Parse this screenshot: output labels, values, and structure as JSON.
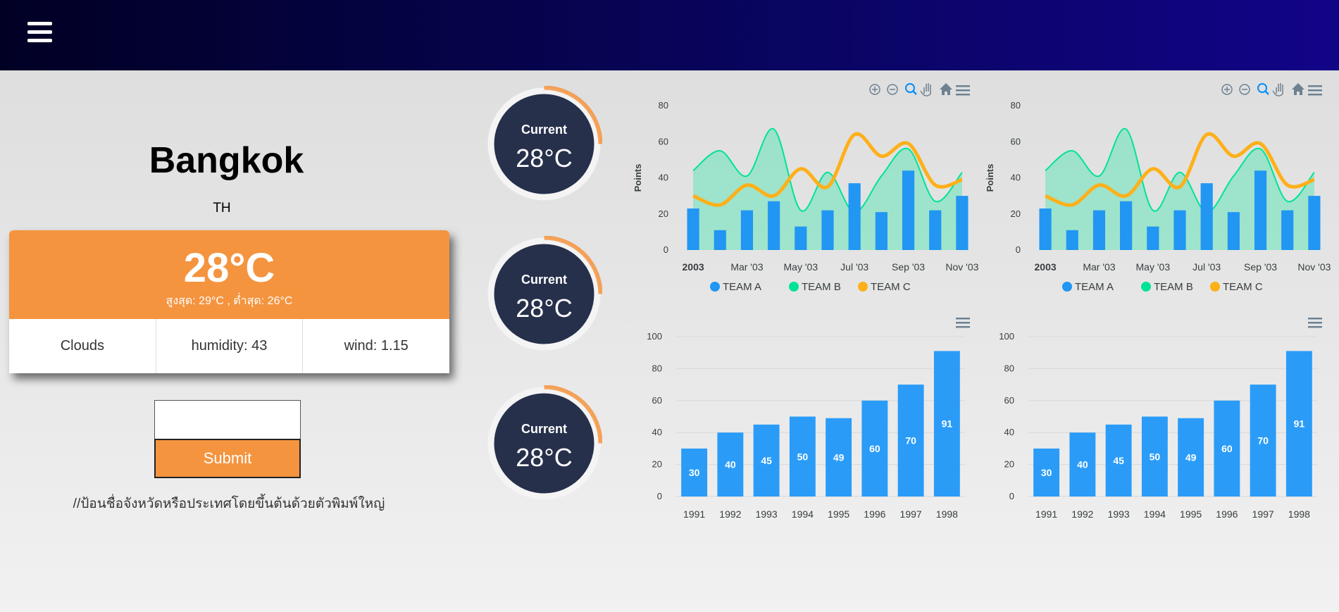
{
  "header": {
    "menu_icon": "hamburger-icon"
  },
  "weather": {
    "city": "Bangkok",
    "country": "TH",
    "temperature": "28°C",
    "minmax": "สูงสุด: 29°C , ต่ำสุด: 26°C",
    "condition": "Clouds",
    "humidity": "humidity: 43",
    "wind": "wind: 1.15",
    "accent": "#f4943f"
  },
  "search": {
    "input_value": "",
    "submit_label": "Submit",
    "hint": "//ป้อนชื่อจังหวัดหรือประเทศโดยขึ้นต้นด้วยตัวพิมพ์ใหญ่"
  },
  "gauges": [
    {
      "title": "Current",
      "value": "28°C"
    },
    {
      "title": "Current",
      "value": "28°C"
    },
    {
      "title": "Current",
      "value": "28°C"
    }
  ],
  "toolbar_icons": [
    "zoom-in-icon",
    "zoom-out-icon",
    "selection-zoom-icon",
    "pan-icon",
    "reset-home-icon",
    "menu-icon"
  ],
  "chart_data": [
    {
      "type": "line",
      "ylabel": "Points",
      "ylim": [
        0,
        80
      ],
      "yticks": [
        "0",
        "20",
        "40",
        "60",
        "80"
      ],
      "xtick_labels": [
        "2003",
        "Mar '03",
        "May '03",
        "Jul '03",
        "Sep '03",
        "Nov '03"
      ],
      "categories": [
        "2003-01",
        "2003-02",
        "2003-03",
        "2003-04",
        "2003-05",
        "2003-06",
        "2003-07",
        "2003-08",
        "2003-09",
        "2003-10",
        "2003-11"
      ],
      "series": [
        {
          "name": "TEAM A",
          "type": "bar",
          "color": "#2196f3",
          "values": [
            23,
            11,
            22,
            27,
            13,
            22,
            37,
            21,
            44,
            22,
            30
          ]
        },
        {
          "name": "TEAM B",
          "type": "area",
          "color": "#00e396",
          "values": [
            44,
            55,
            41,
            67,
            22,
            43,
            21,
            41,
            56,
            27,
            43
          ]
        },
        {
          "name": "TEAM C",
          "type": "line",
          "color": "#feb019",
          "values": [
            30,
            25,
            36,
            30,
            45,
            35,
            64,
            52,
            59,
            36,
            39
          ]
        }
      ],
      "legend": "bottom"
    },
    {
      "type": "line",
      "ylabel": "Points",
      "ylim": [
        0,
        80
      ],
      "yticks": [
        "0",
        "20",
        "40",
        "60",
        "80"
      ],
      "xtick_labels": [
        "2003",
        "Mar '03",
        "May '03",
        "Jul '03",
        "Sep '03",
        "Nov '03"
      ],
      "categories": [
        "2003-01",
        "2003-02",
        "2003-03",
        "2003-04",
        "2003-05",
        "2003-06",
        "2003-07",
        "2003-08",
        "2003-09",
        "2003-10",
        "2003-11"
      ],
      "series": [
        {
          "name": "TEAM A",
          "type": "bar",
          "color": "#2196f3",
          "values": [
            23,
            11,
            22,
            27,
            13,
            22,
            37,
            21,
            44,
            22,
            30
          ]
        },
        {
          "name": "TEAM B",
          "type": "area",
          "color": "#00e396",
          "values": [
            44,
            55,
            41,
            67,
            22,
            43,
            21,
            41,
            56,
            27,
            43
          ]
        },
        {
          "name": "TEAM C",
          "type": "line",
          "color": "#feb019",
          "values": [
            30,
            25,
            36,
            30,
            45,
            35,
            64,
            52,
            59,
            36,
            39
          ]
        }
      ],
      "legend": "bottom"
    },
    {
      "type": "bar",
      "ylim": [
        0,
        100
      ],
      "yticks": [
        "0",
        "20",
        "40",
        "60",
        "80",
        "100"
      ],
      "categories": [
        "1991",
        "1992",
        "1993",
        "1994",
        "1995",
        "1996",
        "1997",
        "1998"
      ],
      "values": [
        30,
        40,
        45,
        50,
        49,
        60,
        70,
        91
      ],
      "color": "#2a9cf8"
    },
    {
      "type": "bar",
      "ylim": [
        0,
        100
      ],
      "yticks": [
        "0",
        "20",
        "40",
        "60",
        "80",
        "100"
      ],
      "categories": [
        "1991",
        "1992",
        "1993",
        "1994",
        "1995",
        "1996",
        "1997",
        "1998"
      ],
      "values": [
        30,
        40,
        45,
        50,
        49,
        60,
        70,
        91
      ],
      "color": "#2a9cf8"
    }
  ]
}
